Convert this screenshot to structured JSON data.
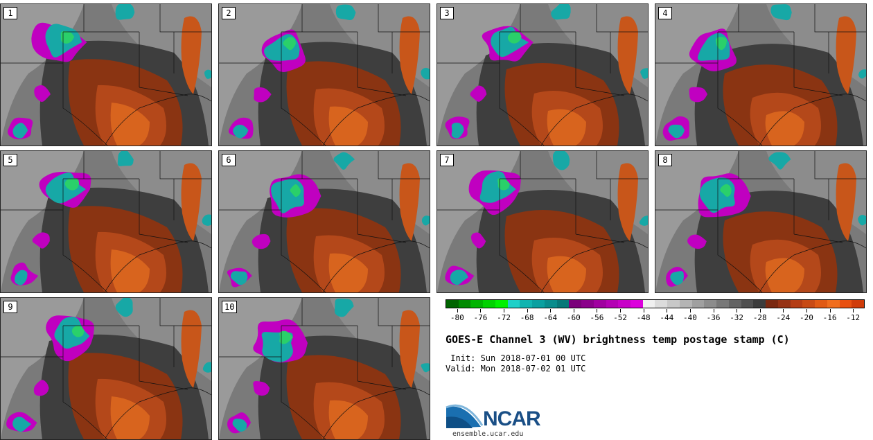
{
  "panels": [
    {
      "label": "1"
    },
    {
      "label": "2"
    },
    {
      "label": "3"
    },
    {
      "label": "4"
    },
    {
      "label": "5"
    },
    {
      "label": "6"
    },
    {
      "label": "7"
    },
    {
      "label": "8"
    },
    {
      "label": "9"
    },
    {
      "label": "10"
    }
  ],
  "colorbar": {
    "colors": [
      "#006400",
      "#008a00",
      "#00b400",
      "#00d200",
      "#00f000",
      "#1fd0c8",
      "#10b4b0",
      "#0aa0a0",
      "#088c8c",
      "#067878",
      "#7a007a",
      "#8a008a",
      "#a000a0",
      "#b400b4",
      "#c800c8",
      "#dc00dc",
      "#f0f0f0",
      "#dcdcdc",
      "#c8c8c8",
      "#b4b4b4",
      "#a0a0a0",
      "#8c8c8c",
      "#787878",
      "#646464",
      "#505050",
      "#3c3c3c",
      "#7a2810",
      "#963214",
      "#b43c14",
      "#c84a14",
      "#e05a14",
      "#f06e1e",
      "#e85010",
      "#d03c0a"
    ],
    "tick_labels": [
      "-80",
      "-76",
      "-72",
      "-68",
      "-64",
      "-60",
      "-56",
      "-52",
      "-48",
      "-44",
      "-40",
      "-36",
      "-32",
      "-28",
      "-24",
      "-20",
      "-16",
      "-12"
    ],
    "range": [
      -82,
      -10
    ]
  },
  "title": "GOES-E Channel 3 (WV) brightness temp postage stamp (C)",
  "init": " Init: Sun 2018-07-01 00 UTC",
  "valid": "Valid: Mon 2018-07-02 01 UTC",
  "logo_text": "NCAR",
  "site": "ensemble.ucar.edu"
}
